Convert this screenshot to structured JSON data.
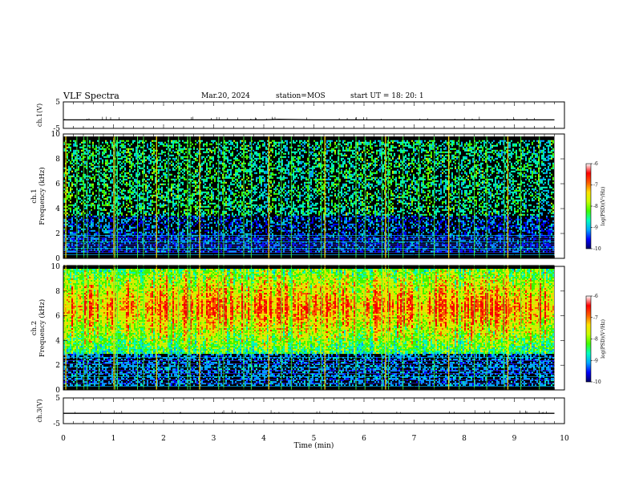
{
  "header": {
    "title": "VLF Spectra",
    "date": "Mar.20, 2024",
    "station": "station=MOS",
    "start": "start  UT  =   18: 20: 1"
  },
  "chart_data": [
    {
      "type": "line",
      "name": "ch1-waveform",
      "ylabel": "ch.1(V)",
      "ylim": [
        -5,
        5
      ],
      "yticks": [
        "5",
        "-5"
      ],
      "x": [
        0,
        1,
        2,
        3,
        4,
        4.3,
        5,
        6,
        7,
        8,
        9,
        9.8
      ],
      "values": [
        -1.8,
        -1.8,
        -1.8,
        -1.8,
        -1.8,
        -1.6,
        -1.8,
        -1.8,
        -1.8,
        -1.8,
        -1.8,
        -1.8
      ],
      "color": "#000000"
    },
    {
      "type": "heatmap",
      "name": "ch1-spectrogram",
      "ylabel": "ch.1\nFrequency (kHz)",
      "xlim": [
        0,
        10
      ],
      "ylim": [
        0,
        10
      ],
      "yticks": [
        0,
        2,
        4,
        6,
        8,
        10
      ],
      "data_x_extent": [
        0,
        9.8
      ],
      "band_khz": [
        0.4,
        9.5
      ],
      "dense_band_khz": [
        3.5,
        9.5
      ],
      "sferics_min": [
        0.05,
        0.27,
        0.41,
        0.48,
        0.71,
        1.01,
        1.04,
        1.08,
        1.48,
        1.6,
        1.86,
        2.1,
        2.3,
        2.48,
        2.53,
        2.72,
        3.1,
        3.2,
        3.6,
        3.75,
        4.1,
        4.35,
        4.55,
        4.9,
        5.15,
        5.22,
        5.5,
        5.84,
        6.02,
        6.36,
        6.43,
        6.49,
        6.78,
        7.1,
        7.4,
        7.69,
        7.9,
        8.2,
        8.45,
        8.8,
        8.87,
        9.13,
        9.5
      ],
      "colorbar": {
        "label": "log(PSD)(V²/Hz)",
        "range": [
          -10,
          -6
        ],
        "ticks": [
          "-6",
          "-7",
          "-8",
          "-9",
          "-10"
        ]
      }
    },
    {
      "type": "heatmap",
      "name": "ch2-spectrogram",
      "ylabel": "ch.2\nFrequency (kHz)",
      "xlim": [
        0,
        10
      ],
      "ylim": [
        0,
        10
      ],
      "yticks": [
        0,
        2,
        4,
        6,
        8,
        10
      ],
      "data_x_extent": [
        0,
        9.8
      ],
      "band_khz": [
        0.3,
        9.8
      ],
      "peak_band_khz": [
        5.5,
        8.0
      ],
      "sferics_min": [
        0.05,
        0.27,
        0.41,
        0.48,
        0.71,
        1.01,
        1.04,
        1.08,
        1.48,
        1.6,
        1.86,
        2.1,
        2.3,
        2.48,
        2.53,
        2.72,
        3.1,
        3.2,
        3.6,
        3.75,
        4.1,
        4.35,
        4.55,
        4.9,
        5.15,
        5.22,
        5.5,
        5.84,
        6.02,
        6.36,
        6.43,
        6.49,
        6.78,
        7.1,
        7.4,
        7.69,
        7.9,
        8.2,
        8.45,
        8.8,
        8.87,
        9.13,
        9.5
      ],
      "colorbar": {
        "label": "log(PSD)(V²/Hz)",
        "range": [
          -10,
          -6
        ],
        "ticks": [
          "-6",
          "-7",
          "-8",
          "-9",
          "-10"
        ]
      }
    },
    {
      "type": "line",
      "name": "ch3-waveform",
      "ylabel": "ch.3(V)",
      "ylim": [
        -5,
        5
      ],
      "yticks": [
        "5",
        "-5"
      ],
      "x": [
        0,
        1,
        2,
        3,
        4,
        5,
        6,
        7,
        8,
        9,
        9.8
      ],
      "values": [
        -1.0,
        -1.0,
        -1.0,
        -1.0,
        -1.0,
        -1.0,
        -1.0,
        -1.0,
        -1.0,
        -1.0,
        -1.0
      ],
      "color": "#000000"
    }
  ],
  "time_axis": {
    "label": "Time (min)",
    "range": [
      0,
      10
    ],
    "ticks": [
      "0",
      "1",
      "2",
      "3",
      "4",
      "5",
      "6",
      "7",
      "8",
      "9",
      "10"
    ]
  },
  "colormap": [
    "#000066",
    "#0000ff",
    "#00a8ff",
    "#00ffc0",
    "#40ff00",
    "#c8ff00",
    "#ffe000",
    "#ff5a00",
    "#ff0000",
    "#ffffff"
  ]
}
